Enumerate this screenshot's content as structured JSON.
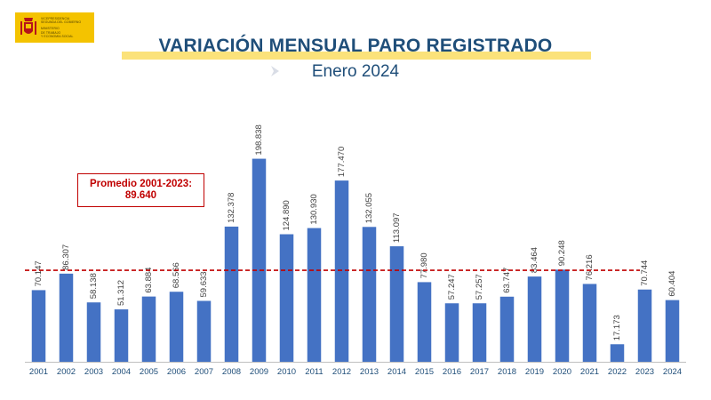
{
  "logo": {
    "lines_a": [
      "Vicepresidencia",
      "Segunda del Gobierno"
    ],
    "lines_b": [
      "Ministerio",
      "de Trabajo",
      "y Economía Social"
    ],
    "colors": {
      "background": "#f4c300"
    }
  },
  "header": {
    "title": "VARIACIÓN MENSUAL PARO REGISTRADO",
    "subtitle": "Enero 2024"
  },
  "average": {
    "label": "Promedio 2001-2023:",
    "value_text": "89.640",
    "value": 89640
  },
  "chart_data": {
    "type": "bar",
    "title": "VARIACIÓN MENSUAL PARO REGISTRADO",
    "subtitle": "Enero 2024",
    "categories": [
      "2001",
      "2002",
      "2003",
      "2004",
      "2005",
      "2006",
      "2007",
      "2008",
      "2009",
      "2010",
      "2011",
      "2012",
      "2013",
      "2014",
      "2015",
      "2016",
      "2017",
      "2018",
      "2019",
      "2020",
      "2021",
      "2022",
      "2023",
      "2024"
    ],
    "values": [
      70147,
      86307,
      58138,
      51312,
      63884,
      68566,
      59633,
      132378,
      198838,
      124890,
      130930,
      177470,
      132055,
      113097,
      77980,
      57247,
      57257,
      63747,
      83464,
      90248,
      76216,
      17173,
      70744,
      60404
    ],
    "labels": [
      "70.147",
      "86.307",
      "58.138",
      "51.312",
      "63.884",
      "68.566",
      "59.633",
      "132.378",
      "198.838",
      "124.890",
      "130.930",
      "177.470",
      "132.055",
      "113.097",
      "77.980",
      "57.247",
      "57.257",
      "63.747",
      "83.464",
      "90.248",
      "76.216",
      "17.173",
      "70.744",
      "60.404"
    ],
    "reference_line": {
      "value": 89640,
      "style": "dashed"
    },
    "xlabel": "",
    "ylabel": "",
    "ylim": [
      0,
      215000
    ],
    "grid": false,
    "legend": "none",
    "colors": {
      "bar": "#4472c4",
      "reference": "#c00000",
      "text": "#1f4e79"
    }
  }
}
